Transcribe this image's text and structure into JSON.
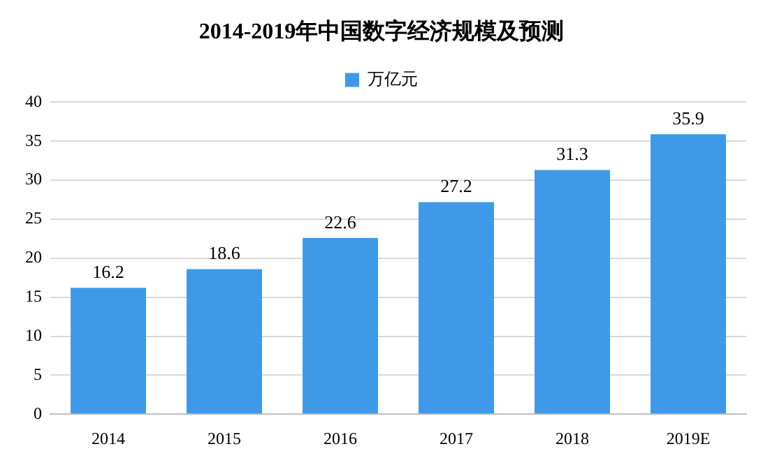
{
  "chart_data": {
    "type": "bar",
    "title": "2014-2019年中国数字经济规模及预测",
    "categories": [
      "2014",
      "2015",
      "2016",
      "2017",
      "2018",
      "2019E"
    ],
    "series": [
      {
        "name": "万亿元",
        "color": "#3e9ae8",
        "values": [
          16.2,
          18.6,
          22.6,
          27.2,
          31.3,
          35.9
        ]
      }
    ],
    "ylim": [
      0,
      40
    ],
    "yticks": [
      0,
      5,
      10,
      15,
      20,
      25,
      30,
      35,
      40
    ],
    "grid": "y",
    "legend": "top",
    "data_labels": true
  }
}
